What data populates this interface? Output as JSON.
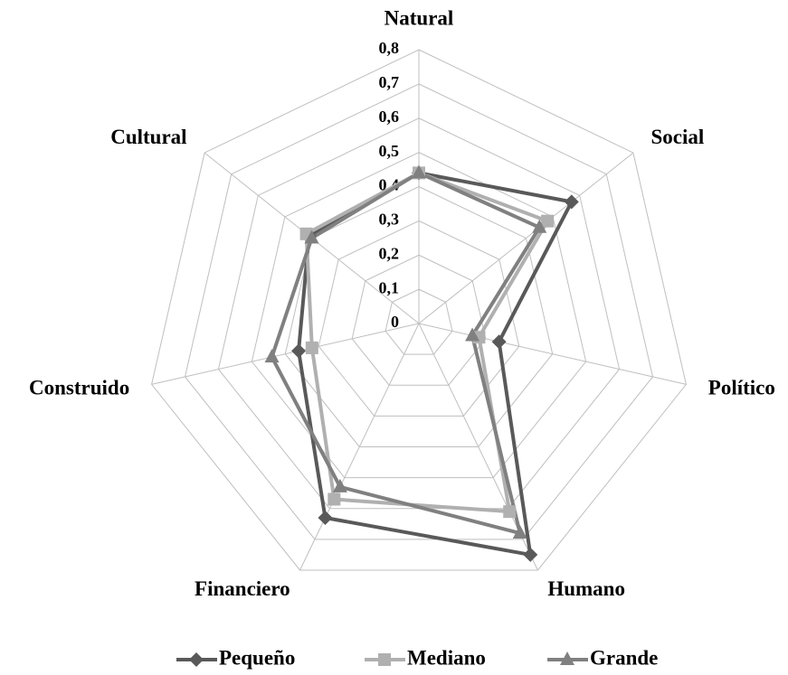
{
  "chart_data": {
    "type": "radar",
    "categories": [
      "Natural",
      "Social",
      "Político",
      "Humano",
      "Financiero",
      "Construido",
      "Cultural"
    ],
    "series": [
      {
        "name": "Pequeño",
        "color": "#595959",
        "values": [
          0.44,
          0.57,
          0.24,
          0.75,
          0.63,
          0.36,
          0.41
        ]
      },
      {
        "name": "Mediano",
        "color": "#b0b0b0",
        "values": [
          0.44,
          0.48,
          0.18,
          0.61,
          0.57,
          0.32,
          0.42
        ]
      },
      {
        "name": "Grande",
        "color": "#808080",
        "values": [
          0.44,
          0.45,
          0.16,
          0.68,
          0.53,
          0.44,
          0.4
        ]
      }
    ],
    "ylim": [
      0,
      0.8
    ],
    "yticks": [
      0,
      {
        "value": 0.1,
        "label": "0,1"
      },
      {
        "value": 0.2,
        "label": "0,2"
      },
      {
        "value": 0.3,
        "label": "0,3"
      },
      {
        "value": 0.4,
        "label": "0,4"
      },
      {
        "value": 0.5,
        "label": "0,5"
      },
      {
        "value": 0.6,
        "label": "0,6"
      },
      {
        "value": 0.7,
        "label": "0,7"
      },
      {
        "value": 0.8,
        "label": "0,8"
      }
    ],
    "grid": true,
    "legend": "bottom"
  }
}
